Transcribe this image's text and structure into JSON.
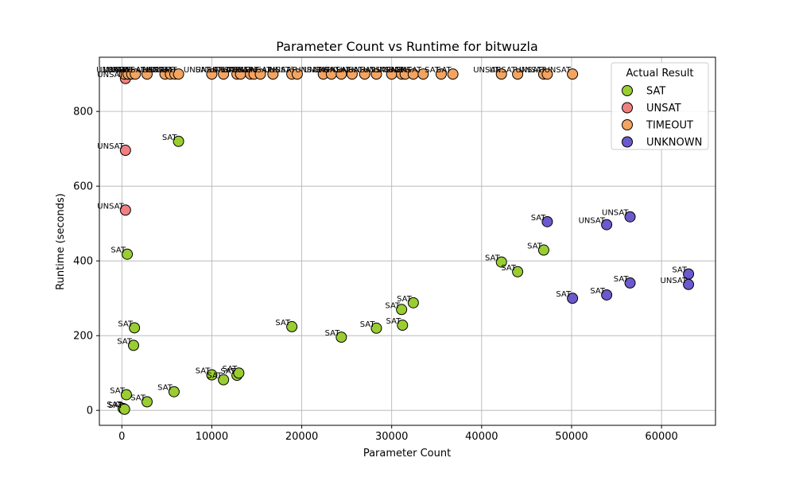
{
  "chart_data": {
    "type": "scatter",
    "title": "Parameter Count vs Runtime for bitwuzla",
    "xlabel": "Parameter Count",
    "ylabel": "Runtime (seconds)",
    "xlim": [
      -2500,
      66000
    ],
    "ylim": [
      -40,
      945
    ],
    "x_ticks": [
      0,
      10000,
      20000,
      30000,
      40000,
      50000,
      60000
    ],
    "y_ticks": [
      0,
      200,
      400,
      600,
      800
    ],
    "grid": true,
    "legend": {
      "title": "Actual Result",
      "position": "top-right",
      "entries": [
        "SAT",
        "UNSAT",
        "TIMEOUT",
        "UNKNOWN"
      ]
    },
    "colors": {
      "SAT": "#9acd32",
      "UNSAT": "#f08080",
      "TIMEOUT": "#f4a460",
      "UNKNOWN": "#6a5acd",
      "marker_edge": "#000000",
      "grid": "#b0b0b0",
      "axes": "#000000"
    },
    "series": [
      {
        "name": "SAT",
        "points": [
          {
            "x": 150,
            "y": 5,
            "label": "SAT"
          },
          {
            "x": 300,
            "y": 3,
            "label": "SAT"
          },
          {
            "x": 500,
            "y": 42,
            "label": "SAT"
          },
          {
            "x": 600,
            "y": 418,
            "label": "SAT"
          },
          {
            "x": 1300,
            "y": 174,
            "label": "SAT"
          },
          {
            "x": 1400,
            "y": 221,
            "label": "SAT"
          },
          {
            "x": 2800,
            "y": 23,
            "label": "SAT"
          },
          {
            "x": 5800,
            "y": 50,
            "label": "SAT"
          },
          {
            "x": 6300,
            "y": 720,
            "label": "SAT"
          },
          {
            "x": 10000,
            "y": 95,
            "label": "SAT"
          },
          {
            "x": 11300,
            "y": 82,
            "label": "SAT"
          },
          {
            "x": 12800,
            "y": 94,
            "label": "SAT"
          },
          {
            "x": 13000,
            "y": 100,
            "label": "SAT"
          },
          {
            "x": 18900,
            "y": 224,
            "label": "SAT"
          },
          {
            "x": 24400,
            "y": 196,
            "label": "SAT"
          },
          {
            "x": 28300,
            "y": 220,
            "label": "SAT"
          },
          {
            "x": 31100,
            "y": 270,
            "label": "SAT"
          },
          {
            "x": 31200,
            "y": 228,
            "label": "SAT"
          },
          {
            "x": 32400,
            "y": 288,
            "label": "SAT"
          },
          {
            "x": 42200,
            "y": 397,
            "label": "SAT"
          },
          {
            "x": 44000,
            "y": 371,
            "label": "SAT"
          },
          {
            "x": 46900,
            "y": 429,
            "label": "SAT"
          }
        ]
      },
      {
        "name": "UNSAT",
        "points": [
          {
            "x": 400,
            "y": 888,
            "label": "UNSAT"
          },
          {
            "x": 400,
            "y": 696,
            "label": "UNSAT"
          },
          {
            "x": 400,
            "y": 536,
            "label": "UNSAT"
          }
        ]
      },
      {
        "name": "TIMEOUT",
        "points": [
          {
            "x": 300,
            "y": 900,
            "label": "UNSAT"
          },
          {
            "x": 700,
            "y": 900,
            "label": "UNSAT"
          },
          {
            "x": 1100,
            "y": 900,
            "label": "UNSAT"
          },
          {
            "x": 1500,
            "y": 900,
            "label": "UNSAT"
          },
          {
            "x": 2800,
            "y": 900,
            "label": "UNSAT"
          },
          {
            "x": 4800,
            "y": 900,
            "label": "UNSAT"
          },
          {
            "x": 5400,
            "y": 900,
            "label": "UNSAT"
          },
          {
            "x": 5900,
            "y": 900,
            "label": "UNSAT"
          },
          {
            "x": 6300,
            "y": 900,
            "label": "UNSAT"
          },
          {
            "x": 10000,
            "y": 900,
            "label": "UNSAT"
          },
          {
            "x": 11300,
            "y": 900,
            "label": "UNSAT"
          },
          {
            "x": 12800,
            "y": 900,
            "label": "UNSAT"
          },
          {
            "x": 13200,
            "y": 900,
            "label": "UNSAT"
          },
          {
            "x": 14300,
            "y": 900,
            "label": "UNSAT"
          },
          {
            "x": 14700,
            "y": 900,
            "label": "UNSAT"
          },
          {
            "x": 15400,
            "y": 900,
            "label": "UNSAT"
          },
          {
            "x": 16800,
            "y": 900,
            "label": "UNSAT"
          },
          {
            "x": 18900,
            "y": 900,
            "label": "UNSAT"
          },
          {
            "x": 19500,
            "y": 900,
            "label": "UNSAT"
          },
          {
            "x": 22400,
            "y": 900,
            "label": "UNSAT"
          },
          {
            "x": 23300,
            "y": 900,
            "label": "UNSAT"
          },
          {
            "x": 24400,
            "y": 900,
            "label": "UNSAT"
          },
          {
            "x": 25600,
            "y": 900,
            "label": "UNSAT"
          },
          {
            "x": 27000,
            "y": 900,
            "label": "UNSAT"
          },
          {
            "x": 28300,
            "y": 900,
            "label": "UNSAT"
          },
          {
            "x": 30000,
            "y": 900,
            "label": "UNSAT"
          },
          {
            "x": 31100,
            "y": 900,
            "label": "UNSAT"
          },
          {
            "x": 31500,
            "y": 900,
            "label": "UNSAT"
          },
          {
            "x": 32400,
            "y": 900,
            "label": "UNSAT"
          },
          {
            "x": 33500,
            "y": 900,
            "label": "UNSAT"
          },
          {
            "x": 35500,
            "y": 900,
            "label": "SAT"
          },
          {
            "x": 36800,
            "y": 900,
            "label": "SAT"
          },
          {
            "x": 42200,
            "y": 900,
            "label": "UNSAT"
          },
          {
            "x": 44000,
            "y": 900,
            "label": "UNSAT"
          },
          {
            "x": 46900,
            "y": 900,
            "label": "UNSAT"
          },
          {
            "x": 47300,
            "y": 900,
            "label": "UNSAT"
          },
          {
            "x": 50100,
            "y": 900,
            "label": "UNSAT"
          }
        ]
      },
      {
        "name": "UNKNOWN",
        "points": [
          {
            "x": 47300,
            "y": 505,
            "label": "SAT"
          },
          {
            "x": 50100,
            "y": 300,
            "label": "SAT"
          },
          {
            "x": 53900,
            "y": 497,
            "label": "UNSAT"
          },
          {
            "x": 53900,
            "y": 309,
            "label": "SAT"
          },
          {
            "x": 56500,
            "y": 518,
            "label": "UNSAT"
          },
          {
            "x": 56500,
            "y": 341,
            "label": "SAT"
          },
          {
            "x": 63000,
            "y": 365,
            "label": "SAT"
          },
          {
            "x": 63000,
            "y": 337,
            "label": "UNSAT"
          }
        ]
      }
    ]
  }
}
